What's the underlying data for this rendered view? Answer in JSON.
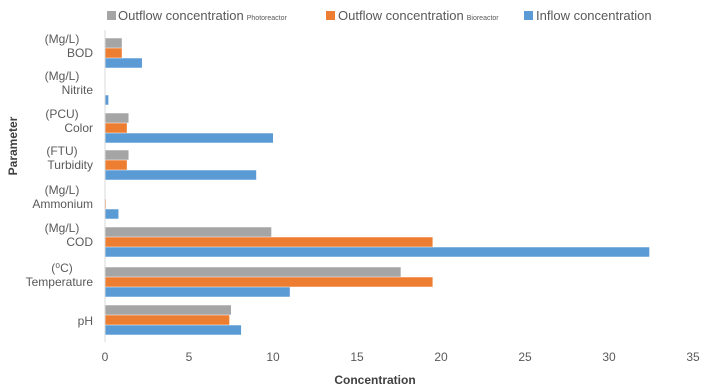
{
  "chart_data": {
    "type": "bar",
    "orientation": "horizontal",
    "xlabel": "Concentration",
    "ylabel": "Parameter",
    "xlim": [
      0,
      35
    ],
    "x_ticks": [
      0,
      5,
      10,
      15,
      20,
      25,
      30,
      35
    ],
    "grid": false,
    "legend_position": "top",
    "categories": [
      {
        "unit": "(Mg/L)",
        "name": "BOD"
      },
      {
        "unit": "(Mg/L)",
        "name": "Nitrite"
      },
      {
        "unit": "(PCU)",
        "name": "Color"
      },
      {
        "unit": "(FTU)",
        "name": "Turbidity"
      },
      {
        "unit": "(Mg/L)",
        "name": "Ammonium"
      },
      {
        "unit": "(Mg/L)",
        "name": "COD"
      },
      {
        "unit": "(⁰C)",
        "name": "Temperature"
      },
      {
        "unit": "",
        "name": "pH"
      }
    ],
    "series": [
      {
        "name": "Outflow concentration",
        "suffix": "Photoreactor",
        "color": "#a5a5a5",
        "values": [
          1.0,
          0.0,
          1.4,
          1.4,
          0.0,
          9.9,
          17.6,
          7.5
        ]
      },
      {
        "name": "Outflow concentration",
        "suffix": "Bioreactor",
        "color": "#ed7d31",
        "values": [
          1.0,
          0.0,
          1.3,
          1.3,
          0.05,
          19.5,
          19.5,
          7.4
        ]
      },
      {
        "name": "Inflow concentration",
        "suffix": "",
        "color": "#5b9bd5",
        "values": [
          2.2,
          0.2,
          10.0,
          9.0,
          0.8,
          32.4,
          11.0,
          8.1
        ]
      }
    ]
  }
}
